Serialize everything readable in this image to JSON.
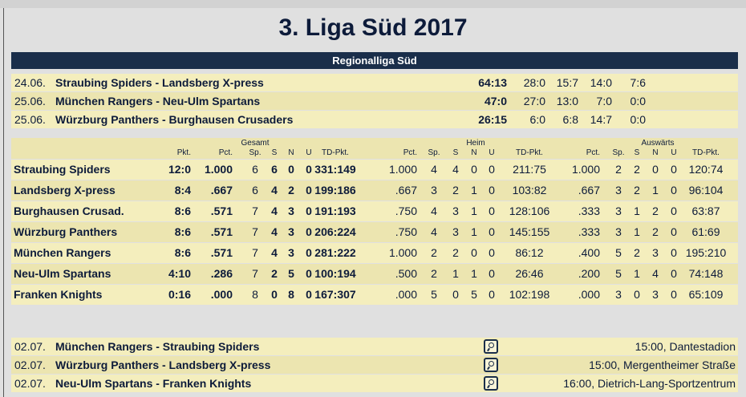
{
  "title": "3. Liga Süd 2017",
  "section": "Regionalliga Süd",
  "results": [
    {
      "date": "24.06.",
      "match": "Straubing Spiders - Landsberg X-press",
      "score": "64:13",
      "q": [
        "28:0",
        "15:7",
        "14:0",
        "7:6"
      ]
    },
    {
      "date": "25.06.",
      "match": "München Rangers - Neu-Ulm Spartans",
      "score": "47:0",
      "q": [
        "27:0",
        "13:0",
        "7:0",
        "0:0"
      ]
    },
    {
      "date": "25.06.",
      "match": "Würzburg Panthers - Burghausen Crusaders",
      "score": "26:15",
      "q": [
        "6:0",
        "6:8",
        "14:7",
        "0:0"
      ]
    }
  ],
  "standings_header": {
    "groups": [
      "Gesamt",
      "Heim",
      "Auswärts"
    ],
    "cols": [
      "Pkt.",
      "Pct.",
      "Sp.",
      "S",
      "N",
      "U",
      "TD-Pkt.",
      "Pct.",
      "Sp.",
      "S",
      "N",
      "U",
      "TD-Pkt.",
      "Pct.",
      "Sp.",
      "S",
      "N",
      "U",
      "TD-Pkt."
    ]
  },
  "standings": [
    {
      "team": "Straubing Spiders",
      "v": [
        "12:0",
        "1.000",
        "6",
        "6",
        "0",
        "0",
        "331:149",
        "1.000",
        "4",
        "4",
        "0",
        "0",
        "211:75",
        "1.000",
        "2",
        "2",
        "0",
        "0",
        "120:74"
      ]
    },
    {
      "team": "Landsberg X-press",
      "v": [
        "8:4",
        ".667",
        "6",
        "4",
        "2",
        "0",
        "199:186",
        ".667",
        "3",
        "2",
        "1",
        "0",
        "103:82",
        ".667",
        "3",
        "2",
        "1",
        "0",
        "96:104"
      ]
    },
    {
      "team": "Burghausen Crusad.",
      "v": [
        "8:6",
        ".571",
        "7",
        "4",
        "3",
        "0",
        "191:193",
        ".750",
        "4",
        "3",
        "1",
        "0",
        "128:106",
        ".333",
        "3",
        "1",
        "2",
        "0",
        "63:87"
      ]
    },
    {
      "team": "Würzburg Panthers",
      "v": [
        "8:6",
        ".571",
        "7",
        "4",
        "3",
        "0",
        "206:224",
        ".750",
        "4",
        "3",
        "1",
        "0",
        "145:155",
        ".333",
        "3",
        "1",
        "2",
        "0",
        "61:69"
      ]
    },
    {
      "team": "München Rangers",
      "v": [
        "8:6",
        ".571",
        "7",
        "4",
        "3",
        "0",
        "281:222",
        "1.000",
        "2",
        "2",
        "0",
        "0",
        "86:12",
        ".400",
        "5",
        "2",
        "3",
        "0",
        "195:210"
      ]
    },
    {
      "team": "Neu-Ulm Spartans",
      "v": [
        "4:10",
        ".286",
        "7",
        "2",
        "5",
        "0",
        "100:194",
        ".500",
        "2",
        "1",
        "1",
        "0",
        "26:46",
        ".200",
        "5",
        "1",
        "4",
        "0",
        "74:148"
      ]
    },
    {
      "team": "Franken Knights",
      "v": [
        "0:16",
        ".000",
        "8",
        "0",
        "8",
        "0",
        "167:307",
        ".000",
        "5",
        "0",
        "5",
        "0",
        "102:198",
        ".000",
        "3",
        "0",
        "3",
        "0",
        "65:109"
      ]
    }
  ],
  "upcoming": [
    {
      "date": "02.07.",
      "match": "München Rangers - Straubing Spiders",
      "info": "15:00, Dantestadion",
      "icon": "magnifier-icon"
    },
    {
      "date": "02.07.",
      "match": "Würzburg Panthers - Landsberg X-press",
      "info": "15:00, Mergentheimer Straße",
      "icon": "magnifier-icon"
    },
    {
      "date": "02.07.",
      "match": "Neu-Ulm Spartans - Franken Knights",
      "info": "16:00, Dietrich-Lang-Sportzentrum",
      "icon": "magnifier-icon"
    }
  ],
  "colors": {
    "header": "#1a2e4a",
    "row_light": "#f4eebd",
    "row_dark": "#ece5b0",
    "background": "#e0e0e0"
  }
}
